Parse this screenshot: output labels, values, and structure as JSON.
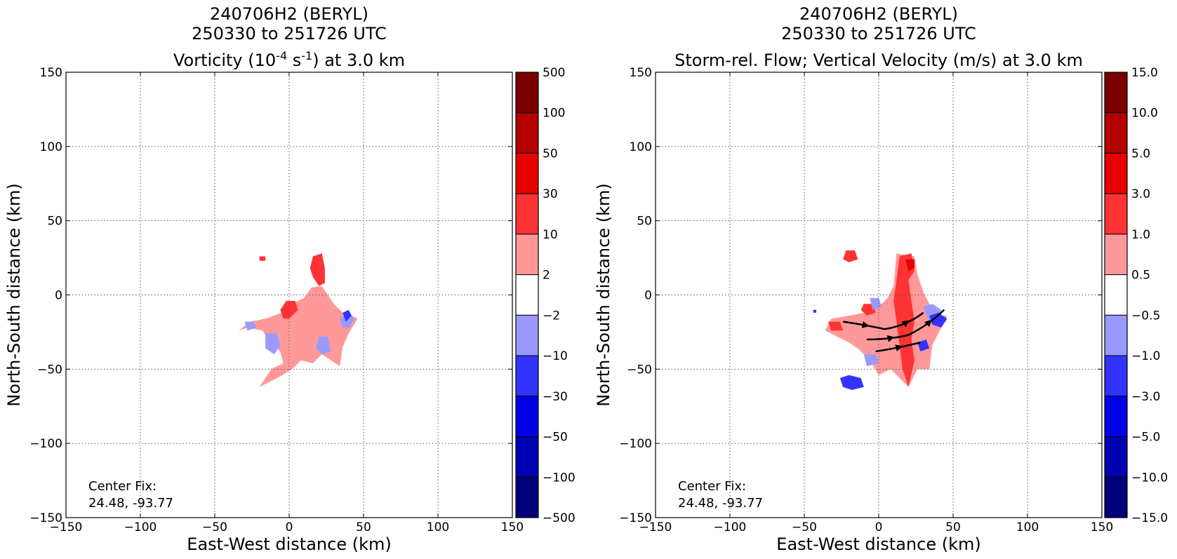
{
  "chart_data": [
    {
      "type": "heatmap",
      "title_lines": [
        "240706H2 (BERYL)",
        "250330 to 251726 UTC"
      ],
      "subtitle_parts": [
        "Vorticity (10",
        "-4",
        " s",
        "-1",
        ") at 3.0 km"
      ],
      "xlabel": "East-West distance (km)",
      "ylabel": "North-South distance (km)",
      "xlim": [
        -150,
        150
      ],
      "ylim": [
        -150,
        150
      ],
      "xticks": [
        -150,
        -100,
        -50,
        0,
        50,
        100,
        150
      ],
      "yticks": [
        -150,
        -100,
        -50,
        0,
        50,
        100,
        150
      ],
      "xtick_labels": [
        "−150",
        "−100",
        "−50",
        "0",
        "50",
        "100",
        "150"
      ],
      "ytick_labels": [
        "−150",
        "−100",
        "−50",
        "0",
        "50",
        "100",
        "150"
      ],
      "grid": true,
      "colorbar": {
        "levels": [
          "500",
          "100",
          "50",
          "30",
          "10",
          "2",
          "−2",
          "−10",
          "−30",
          "−50",
          "−100",
          "−500"
        ],
        "colors": [
          "#7a0000",
          "#b30000",
          "#e60000",
          "#ff3333",
          "#ff9999",
          "#ffffff",
          "#9999ff",
          "#3333ff",
          "#0000e6",
          "#0000b3",
          "#00007a"
        ]
      },
      "annotation": [
        "Center Fix:",
        "24.48, -93.77"
      ],
      "regions": [
        {
          "color": "#ff9999",
          "points": [
            [
              -5,
              -12
            ],
            [
              2,
              -6
            ],
            [
              10,
              -2
            ],
            [
              15,
              5
            ],
            [
              22,
              6
            ],
            [
              26,
              0
            ],
            [
              30,
              -6
            ],
            [
              36,
              -12
            ],
            [
              42,
              -14
            ],
            [
              46,
              -16
            ],
            [
              40,
              -26
            ],
            [
              36,
              -35
            ],
            [
              34,
              -48
            ],
            [
              28,
              -44
            ],
            [
              22,
              -40
            ],
            [
              16,
              -46
            ],
            [
              8,
              -44
            ],
            [
              2,
              -50
            ],
            [
              -8,
              -56
            ],
            [
              -20,
              -62
            ],
            [
              -12,
              -50
            ],
            [
              -4,
              -46
            ],
            [
              -6,
              -38
            ],
            [
              -14,
              -30
            ],
            [
              -18,
              -24
            ],
            [
              -28,
              -22
            ],
            [
              -34,
              -24
            ],
            [
              -26,
              -18
            ],
            [
              -16,
              -16
            ]
          ]
        },
        {
          "color": "#ff3333",
          "points": [
            [
              16,
              26
            ],
            [
              22,
              28
            ],
            [
              24,
              18
            ],
            [
              24,
              8
            ],
            [
              20,
              6
            ],
            [
              16,
              12
            ],
            [
              14,
              18
            ]
          ]
        },
        {
          "color": "#ff3333",
          "points": [
            [
              -6,
              -10
            ],
            [
              -2,
              -4
            ],
            [
              4,
              -4
            ],
            [
              6,
              -10
            ],
            [
              0,
              -16
            ],
            [
              -4,
              -16
            ]
          ]
        },
        {
          "color": "#ff3333",
          "points": [
            [
              -20,
              26
            ],
            [
              -16,
              26
            ],
            [
              -16,
              23
            ],
            [
              -20,
              23
            ]
          ]
        },
        {
          "color": "#9999ff",
          "points": [
            [
              -16,
              -26
            ],
            [
              -8,
              -26
            ],
            [
              -6,
              -34
            ],
            [
              -10,
              -40
            ],
            [
              -16,
              -36
            ]
          ]
        },
        {
          "color": "#9999ff",
          "points": [
            [
              20,
              -28
            ],
            [
              26,
              -28
            ],
            [
              28,
              -38
            ],
            [
              22,
              -40
            ],
            [
              18,
              -36
            ]
          ]
        },
        {
          "color": "#9999ff",
          "points": [
            [
              34,
              -16
            ],
            [
              40,
              -12
            ],
            [
              44,
              -16
            ],
            [
              40,
              -22
            ],
            [
              36,
              -22
            ]
          ]
        },
        {
          "color": "#9999ff",
          "points": [
            [
              -30,
              -18
            ],
            [
              -24,
              -18
            ],
            [
              -22,
              -22
            ],
            [
              -28,
              -24
            ]
          ]
        },
        {
          "color": "#3333ff",
          "points": [
            [
              36,
              -12
            ],
            [
              40,
              -10
            ],
            [
              42,
              -14
            ],
            [
              38,
              -18
            ]
          ]
        }
      ],
      "arrows": []
    },
    {
      "type": "heatmap",
      "title_lines": [
        "240706H2 (BERYL)",
        "250330 to 251726 UTC"
      ],
      "subtitle_parts": [
        "Storm-rel. Flow; Vertical Velocity (m/s) at 3.0 km"
      ],
      "xlabel": "East-West distance (km)",
      "ylabel": "North-South distance (km)",
      "xlim": [
        -150,
        150
      ],
      "ylim": [
        -150,
        150
      ],
      "xticks": [
        -150,
        -100,
        -50,
        0,
        50,
        100,
        150
      ],
      "yticks": [
        -150,
        -100,
        -50,
        0,
        50,
        100,
        150
      ],
      "xtick_labels": [
        "−150",
        "−100",
        "−50",
        "0",
        "50",
        "100",
        "150"
      ],
      "ytick_labels": [
        "−150",
        "−100",
        "−50",
        "0",
        "50",
        "100",
        "150"
      ],
      "grid": true,
      "colorbar": {
        "levels": [
          "15.0",
          "10.0",
          "5.0",
          "3.0",
          "1.0",
          "0.5",
          "−0.5",
          "−1.0",
          "−3.0",
          "−5.0",
          "−10.0",
          "−15.0"
        ],
        "colors": [
          "#7a0000",
          "#b30000",
          "#e60000",
          "#ff3333",
          "#ff9999",
          "#ffffff",
          "#9999ff",
          "#3333ff",
          "#0000e6",
          "#0000b3",
          "#00007a"
        ]
      },
      "annotation": [
        "Center Fix:",
        "24.48, -93.77"
      ],
      "regions": [
        {
          "color": "#ff9999",
          "points": [
            [
              12,
              28
            ],
            [
              24,
              26
            ],
            [
              26,
              14
            ],
            [
              30,
              2
            ],
            [
              34,
              -6
            ],
            [
              40,
              -14
            ],
            [
              46,
              -14
            ],
            [
              40,
              -26
            ],
            [
              36,
              -34
            ],
            [
              34,
              -50
            ],
            [
              26,
              -50
            ],
            [
              20,
              -62
            ],
            [
              14,
              -56
            ],
            [
              8,
              -50
            ],
            [
              0,
              -54
            ],
            [
              -6,
              -44
            ],
            [
              -14,
              -36
            ],
            [
              -20,
              -32
            ],
            [
              -28,
              -28
            ],
            [
              -36,
              -24
            ],
            [
              -32,
              -16
            ],
            [
              -20,
              -14
            ],
            [
              -10,
              -12
            ],
            [
              0,
              -8
            ],
            [
              6,
              -2
            ],
            [
              10,
              6
            ]
          ]
        },
        {
          "color": "#ff3333",
          "points": [
            [
              14,
              26
            ],
            [
              22,
              28
            ],
            [
              24,
              16
            ],
            [
              20,
              10
            ],
            [
              22,
              -4
            ],
            [
              24,
              -18
            ],
            [
              22,
              -30
            ],
            [
              24,
              -44
            ],
            [
              20,
              -62
            ],
            [
              16,
              -50
            ],
            [
              14,
              -34
            ],
            [
              12,
              -18
            ],
            [
              10,
              -4
            ],
            [
              12,
              10
            ]
          ]
        },
        {
          "color": "#ff3333",
          "points": [
            [
              -22,
              30
            ],
            [
              -16,
              30
            ],
            [
              -14,
              24
            ],
            [
              -20,
              22
            ],
            [
              -24,
              24
            ]
          ]
        },
        {
          "color": "#ff3333",
          "points": [
            [
              -10,
              -6
            ],
            [
              -4,
              -6
            ],
            [
              -2,
              -12
            ],
            [
              -8,
              -14
            ],
            [
              -12,
              -10
            ]
          ]
        },
        {
          "color": "#ff3333",
          "points": [
            [
              -34,
              -18
            ],
            [
              -26,
              -18
            ],
            [
              -24,
              -24
            ],
            [
              -32,
              -24
            ]
          ]
        },
        {
          "color": "#e60000",
          "points": [
            [
              18,
              24
            ],
            [
              24,
              24
            ],
            [
              24,
              18
            ],
            [
              20,
              16
            ]
          ]
        },
        {
          "color": "#9999ff",
          "points": [
            [
              -6,
              -2
            ],
            [
              0,
              -2
            ],
            [
              2,
              -8
            ],
            [
              -4,
              -10
            ]
          ]
        },
        {
          "color": "#9999ff",
          "points": [
            [
              30,
              -8
            ],
            [
              36,
              -6
            ],
            [
              42,
              -10
            ],
            [
              40,
              -18
            ],
            [
              34,
              -18
            ]
          ]
        },
        {
          "color": "#9999ff",
          "points": [
            [
              -10,
              -40
            ],
            [
              -2,
              -40
            ],
            [
              0,
              -46
            ],
            [
              -8,
              -48
            ]
          ]
        },
        {
          "color": "#3333ff",
          "points": [
            [
              -26,
              -56
            ],
            [
              -20,
              -54
            ],
            [
              -12,
              -56
            ],
            [
              -10,
              -62
            ],
            [
              -18,
              -64
            ],
            [
              -24,
              -62
            ]
          ]
        },
        {
          "color": "#3333ff",
          "points": [
            [
              -44,
              -10
            ],
            [
              -42,
              -10
            ],
            [
              -42,
              -12
            ],
            [
              -44,
              -12
            ]
          ]
        },
        {
          "color": "#3333ff",
          "points": [
            [
              34,
              -14
            ],
            [
              40,
              -12
            ],
            [
              46,
              -16
            ],
            [
              42,
              -22
            ],
            [
              36,
              -20
            ]
          ]
        },
        {
          "color": "#3333ff",
          "points": [
            [
              26,
              -32
            ],
            [
              32,
              -30
            ],
            [
              34,
              -36
            ],
            [
              28,
              -38
            ]
          ]
        }
      ],
      "arrows": [
        [
          [
            -24,
            -18
          ],
          [
            -10,
            -20
          ],
          [
            4,
            -23
          ]
        ],
        [
          [
            -8,
            -30
          ],
          [
            8,
            -30
          ],
          [
            20,
            -27
          ]
        ],
        [
          [
            -2,
            -38
          ],
          [
            12,
            -36
          ],
          [
            28,
            -32
          ]
        ],
        [
          [
            4,
            -23
          ],
          [
            18,
            -21
          ],
          [
            30,
            -12
          ]
        ],
        [
          [
            20,
            -27
          ],
          [
            34,
            -20
          ],
          [
            44,
            -10
          ]
        ]
      ]
    }
  ]
}
